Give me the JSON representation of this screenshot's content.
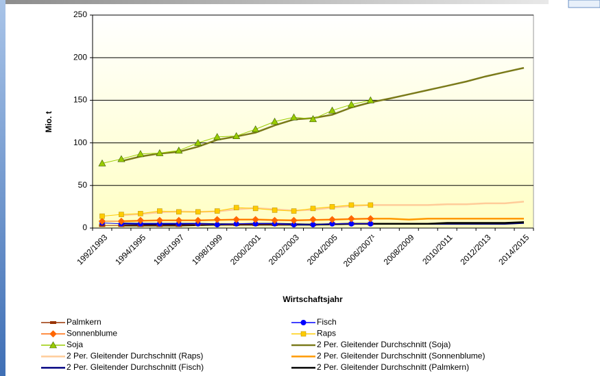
{
  "chart_data": {
    "type": "line",
    "ylabel": "Mio. t",
    "xlabel": "Wirtschaftsjahr",
    "categories": [
      "1992/1993",
      null,
      "1994/1995",
      null,
      "1996/1997",
      null,
      "1998/1999",
      null,
      "2000/2001",
      null,
      "2002/2003",
      null,
      "2004/2005",
      null,
      "2006/2007¹",
      null,
      "2008/2009",
      null,
      "2010/2011",
      null,
      "2012/2013",
      null,
      "2014/2015"
    ],
    "ylim": [
      0,
      250
    ],
    "yticks": [
      0,
      50,
      100,
      150,
      200,
      250
    ],
    "grid": true,
    "series": [
      {
        "name": "Palmkern",
        "color": "#993300",
        "marker": "dash",
        "values": [
          3,
          3,
          3,
          3,
          3,
          4,
          4,
          4,
          4,
          4,
          4,
          4,
          5,
          5,
          5,
          null,
          null,
          null,
          null,
          null,
          null,
          null,
          null
        ]
      },
      {
        "name": "Fisch",
        "color": "#0000ff",
        "marker": "circle",
        "values": [
          6,
          5,
          5,
          5,
          5,
          5,
          4,
          5,
          5,
          5,
          4,
          4,
          5,
          5,
          5,
          null,
          null,
          null,
          null,
          null,
          null,
          null,
          null
        ]
      },
      {
        "name": "Sonnenblume",
        "color": "#ff6600",
        "marker": "diamond",
        "values": [
          8,
          8,
          9,
          9,
          9,
          9,
          10,
          10,
          10,
          9,
          9,
          10,
          10,
          11,
          11,
          null,
          null,
          null,
          null,
          null,
          null,
          null,
          null
        ]
      },
      {
        "name": "Raps",
        "color": "#ffcc00",
        "marker": "square",
        "values": [
          14,
          16,
          17,
          20,
          19,
          19,
          20,
          24,
          23,
          21,
          20,
          23,
          25,
          27,
          27,
          null,
          null,
          null,
          null,
          null,
          null,
          null,
          null
        ]
      },
      {
        "name": "Soja",
        "color": "#99cc00",
        "marker": "triangle",
        "values": [
          76,
          81,
          87,
          88,
          91,
          100,
          107,
          108,
          116,
          125,
          130,
          128,
          138,
          145,
          150,
          null,
          null,
          null,
          null,
          null,
          null,
          null,
          null
        ]
      },
      {
        "name": "2 Per. Gleitender Durchschnitt (Soja)",
        "color": "#7a7a1a",
        "values": [
          null,
          78.5,
          84,
          87.5,
          89.5,
          95.5,
          103.5,
          107.5,
          112,
          120.5,
          127.5,
          129,
          133,
          141.5,
          147.5,
          152,
          157,
          162,
          167,
          172,
          178,
          183,
          188
        ]
      },
      {
        "name": "2 Per. Gleitender Durchschnitt (Raps)",
        "color": "#ffcc99",
        "values": [
          null,
          15,
          16.5,
          18.5,
          19.5,
          19,
          19.5,
          22,
          23.5,
          22,
          20.5,
          21.5,
          24,
          26,
          27,
          27,
          27,
          27,
          28,
          28,
          29,
          29,
          31
        ]
      },
      {
        "name": "2 Per. Gleitender Durchschnitt (Sonnenblume)",
        "color": "#ff9900",
        "values": [
          null,
          8,
          8.5,
          9,
          9,
          9,
          9.5,
          10,
          10,
          9.5,
          9,
          9.5,
          10,
          10.5,
          11,
          11,
          10,
          11,
          11,
          11,
          11,
          11,
          11
        ]
      },
      {
        "name": "2 Per. Gleitender Durchschnitt (Fisch)",
        "color": "#000080",
        "values": [
          null,
          5.5,
          5,
          5,
          5,
          5,
          4.5,
          4.5,
          5,
          5,
          4.5,
          4,
          4.5,
          5,
          5,
          5,
          5,
          5,
          5,
          5,
          5,
          5,
          6
        ]
      },
      {
        "name": "2 Per. Gleitender Durchschnitt (Palmkern)",
        "color": "#000000",
        "values": [
          null,
          3,
          3,
          3,
          3,
          3.5,
          4,
          4,
          4,
          4,
          4,
          4,
          4.5,
          5,
          5,
          5,
          5,
          5,
          6,
          6,
          6,
          6,
          7
        ]
      }
    ]
  }
}
